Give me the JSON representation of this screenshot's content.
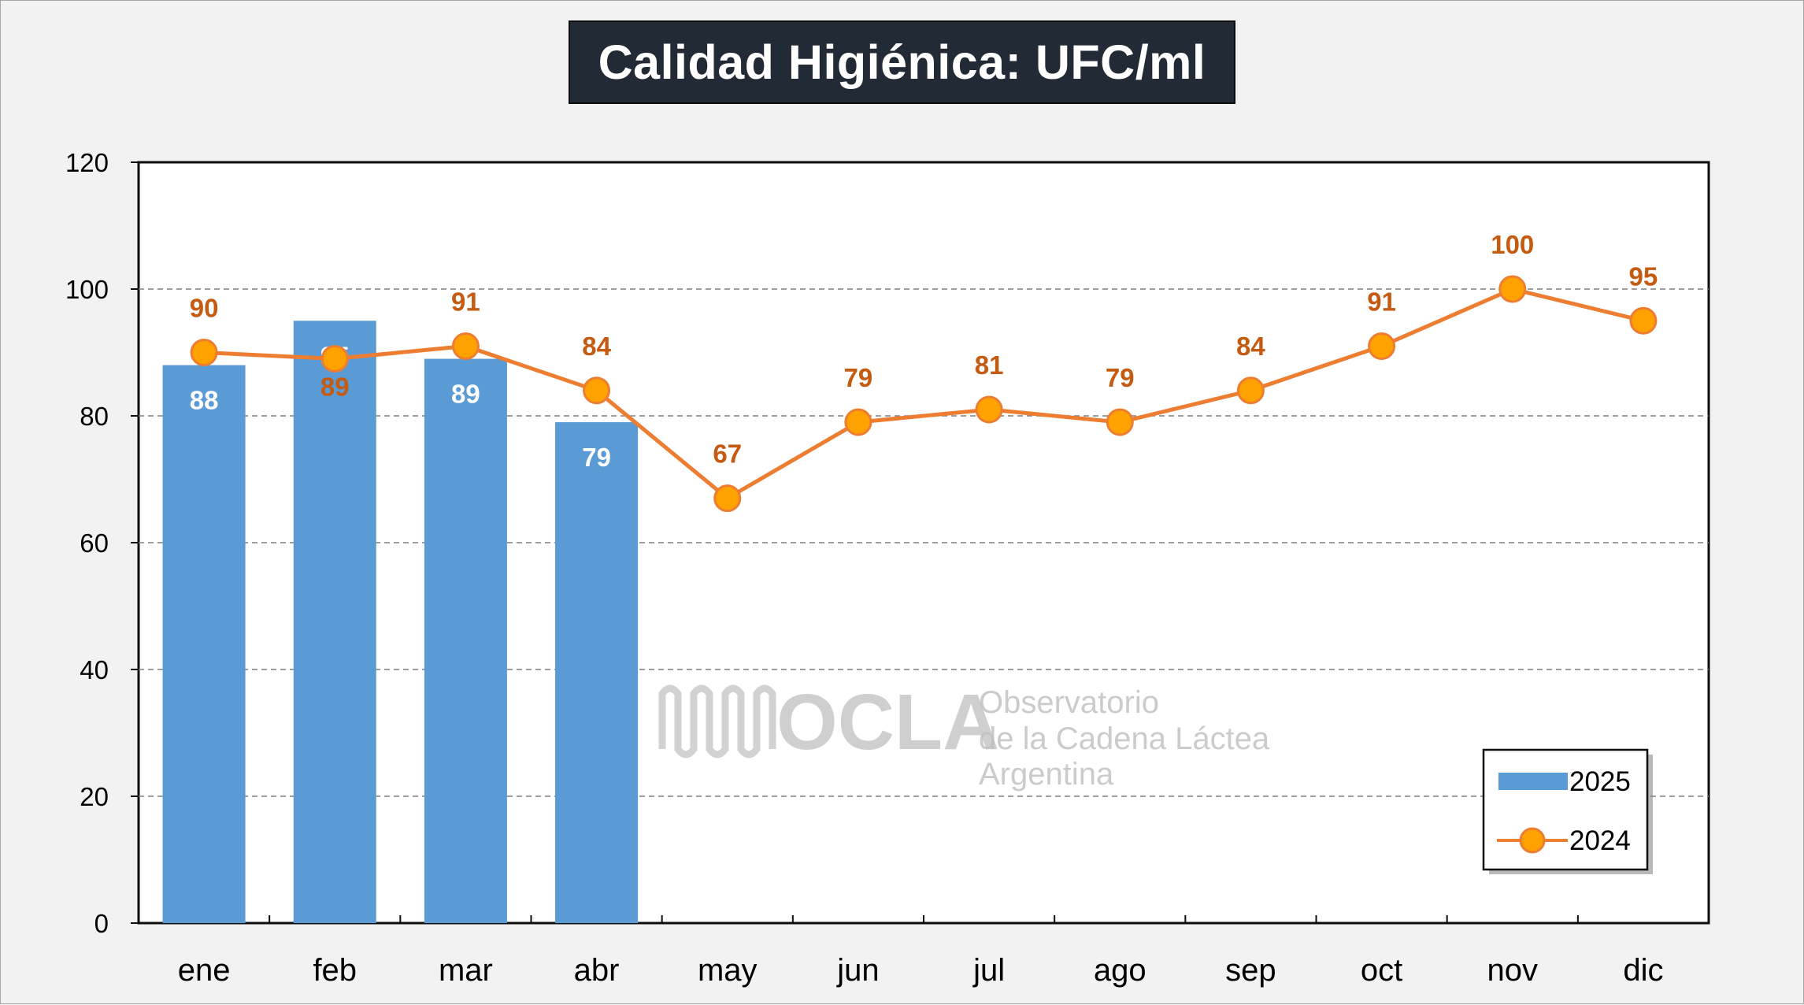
{
  "colors": {
    "bar": "#5b9bd5",
    "line": "#ed7d31",
    "marker": "#ffa200",
    "line_label": "#c55a11",
    "bar_label": "#ffffff",
    "title_bg": "#222a35"
  },
  "chart_data": {
    "type": "bar",
    "title": "Calidad Higiénica: UFC/ml",
    "xlabel": "",
    "ylabel": "",
    "ylim": [
      0,
      120
    ],
    "yticks": [
      0,
      20,
      40,
      60,
      80,
      100,
      120
    ],
    "grid": true,
    "legend_position": "bottom-right",
    "categories": [
      "ene",
      "feb",
      "mar",
      "abr",
      "may",
      "jun",
      "jul",
      "ago",
      "sep",
      "oct",
      "nov",
      "dic"
    ],
    "series": [
      {
        "name": "2025",
        "type": "bar",
        "values": [
          88,
          95,
          89,
          79,
          null,
          null,
          null,
          null,
          null,
          null,
          null,
          null
        ]
      },
      {
        "name": "2024",
        "type": "line",
        "values": [
          90,
          89,
          91,
          84,
          67,
          79,
          81,
          79,
          84,
          91,
          100,
          95
        ]
      }
    ]
  },
  "watermark": {
    "brand": "OCLA",
    "line1": "Observatorio",
    "line2": "de la Cadena Láctea",
    "line3": "Argentina"
  }
}
